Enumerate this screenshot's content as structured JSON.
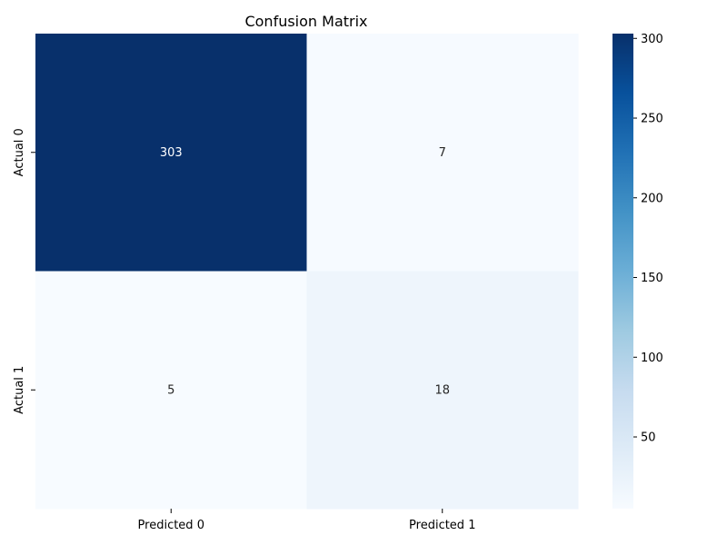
{
  "chart_data": {
    "type": "heatmap",
    "title": "Confusion Matrix",
    "x_categories": [
      "Predicted 0",
      "Predicted 1"
    ],
    "y_categories": [
      "Actual 0",
      "Actual 1"
    ],
    "values": [
      [
        303,
        7
      ],
      [
        5,
        18
      ]
    ],
    "colormap": "Blues",
    "colorbar": {
      "range": [
        5,
        303
      ],
      "ticks": [
        50,
        100,
        150,
        200,
        250,
        300
      ]
    },
    "cell_text_colors": {
      "dark": "#ffffff",
      "light": "#262626"
    }
  }
}
